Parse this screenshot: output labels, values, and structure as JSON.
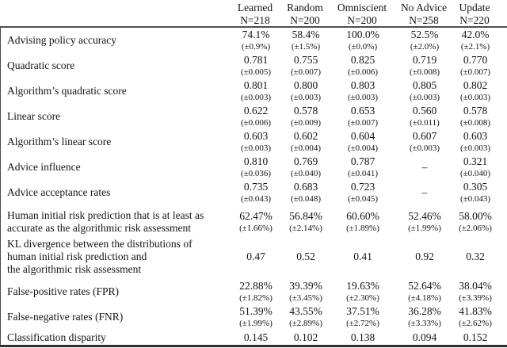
{
  "table": {
    "columns": [
      {
        "label": "Learned",
        "n": "N=218"
      },
      {
        "label": "Random",
        "n": "N=200"
      },
      {
        "label": "Omniscient",
        "n": "N=200"
      },
      {
        "label": "No Advice",
        "n": "N=258"
      },
      {
        "label": "Update",
        "n": "N=220"
      }
    ],
    "rows": [
      {
        "label_lines": [
          "Advising policy accuracy"
        ],
        "values": [
          "74.1%",
          "58.4%",
          "100.0%",
          "52.5%",
          "42.0%"
        ],
        "errors": [
          "(±0.9%)",
          "(±1.5%)",
          "(±0.0%)",
          "(±2.0%)",
          "(±2.1%)"
        ]
      },
      {
        "label_lines": [
          "Quadratic score"
        ],
        "values": [
          "0.781",
          "0.755",
          "0.825",
          "0.719",
          "0.770"
        ],
        "errors": [
          "(±0.005)",
          "(±0.007)",
          "(±0.006)",
          "(±0.008)",
          "(±0.007)"
        ]
      },
      {
        "label_lines": [
          "Algorithm’s quadratic score"
        ],
        "values": [
          "0.801",
          "0.800",
          "0.803",
          "0.805",
          "0.802"
        ],
        "errors": [
          "(±0.003)",
          "(±0.003)",
          "(±0.003)",
          "(±0.003)",
          "(±0.003)"
        ]
      },
      {
        "label_lines": [
          "Linear score"
        ],
        "values": [
          "0.622",
          "0.578",
          "0.653",
          "0.560",
          "0.578"
        ],
        "errors": [
          "(±0.006)",
          "(±0.009)",
          "(±0.007)",
          "(±0.011)",
          "(±0.008)"
        ]
      },
      {
        "label_lines": [
          "Algorithm’s linear score"
        ],
        "values": [
          "0.603",
          "0.602",
          "0.604",
          "0.607",
          "0.603"
        ],
        "errors": [
          "(±0.003)",
          "(±0.004)",
          "(±0.004)",
          "(±0.003)",
          "(±0.003)"
        ]
      },
      {
        "label_lines": [
          "Advice influence"
        ],
        "values": [
          "0.810",
          "0.769",
          "0.787",
          "–",
          "0.321"
        ],
        "errors": [
          "(±0.036)",
          "(±0.040)",
          "(±0.041)",
          "",
          "(±0.040)"
        ]
      },
      {
        "label_lines": [
          "Advice acceptance rates"
        ],
        "values": [
          "0.735",
          "0.683",
          "0.723",
          "–",
          "0.305"
        ],
        "errors": [
          "(±0.043)",
          "(±0.048)",
          "(±0.045)",
          "",
          "(±0.043)"
        ]
      },
      {
        "label_lines": [
          "Human initial risk prediction that is at least as",
          "accurate as the algorithmic risk assessment"
        ],
        "values": [
          "62.47%",
          "56.84%",
          "60.60%",
          "52.46%",
          "58.00%"
        ],
        "errors": [
          "(±1.66%)",
          "(±2.14%)",
          "(±1.89%)",
          "(±1.99%)",
          "(±2.06%)"
        ]
      },
      {
        "label_lines": [
          "KL divergence between the distributions of",
          "human initial risk prediction and",
          "the algorithmic risk assessment"
        ],
        "values": [
          "0.47",
          "0.52",
          "0.41",
          "0.92",
          "0.32"
        ],
        "errors": [
          "",
          "",
          "",
          "",
          ""
        ]
      },
      {
        "label_lines": [
          "False-positive rates (FPR)"
        ],
        "values": [
          "22.88%",
          "39.39%",
          "19.63%",
          "52.64%",
          "38.04%"
        ],
        "errors": [
          "(±1.82%)",
          "(±3.45%)",
          "(±2.30%)",
          "(±4.18%)",
          "(±3.39%)"
        ]
      },
      {
        "label_lines": [
          "False-negative rates (FNR)"
        ],
        "values": [
          "51.39%",
          "43.55%",
          "37.51%",
          "36.28%",
          "41.83%"
        ],
        "errors": [
          "(±1.99%)",
          "(±2.89%)",
          "(±2.72%)",
          "(±3.33%)",
          "(±2.62%)"
        ]
      },
      {
        "label_lines": [
          "Classification disparity"
        ],
        "values": [
          "0.145",
          "0.102",
          "0.138",
          "0.094",
          "0.152"
        ],
        "errors": [
          "",
          "",
          "",
          "",
          ""
        ]
      }
    ]
  },
  "colors": {
    "text": "#141414",
    "header_rule": "#4f4f4f",
    "bottom_rule": "#2e2e2e",
    "left_rule": "#4a4a4a",
    "background": "#ffffff"
  }
}
